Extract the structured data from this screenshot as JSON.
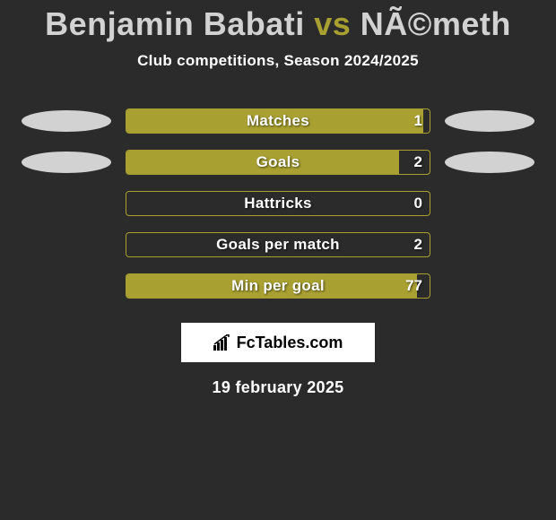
{
  "title": {
    "player1": "Benjamin Babati",
    "vs": "vs",
    "player2": "NÃ©meth",
    "player1_color": "#d2d2d2",
    "vs_color": "#a8a031",
    "player2_color": "#d2d2d2"
  },
  "subtitle": "Club competitions, Season 2024/2025",
  "bar_style": {
    "border_color": "#a8a031",
    "fill_color": "#a8a031",
    "border_radius": 4
  },
  "blob_colors": {
    "left_top": "#d2d2d2",
    "right_top": "#d2d2d2",
    "left_second": "#d2d2d2",
    "right_second": "#d2d2d2"
  },
  "stats": [
    {
      "label": "Matches",
      "value": "1",
      "fill_pct": 98,
      "has_blobs": true
    },
    {
      "label": "Goals",
      "value": "2",
      "fill_pct": 90,
      "has_blobs": true
    },
    {
      "label": "Hattricks",
      "value": "0",
      "fill_pct": 0,
      "has_blobs": false
    },
    {
      "label": "Goals per match",
      "value": "2",
      "fill_pct": 0,
      "has_blobs": false
    },
    {
      "label": "Min per goal",
      "value": "77",
      "fill_pct": 96,
      "has_blobs": false
    }
  ],
  "logo": {
    "text": "FcTables.com",
    "text_color": "#000000",
    "bg_color": "#ffffff"
  },
  "date": "19 february 2025",
  "background_color": "#2b2b2b"
}
